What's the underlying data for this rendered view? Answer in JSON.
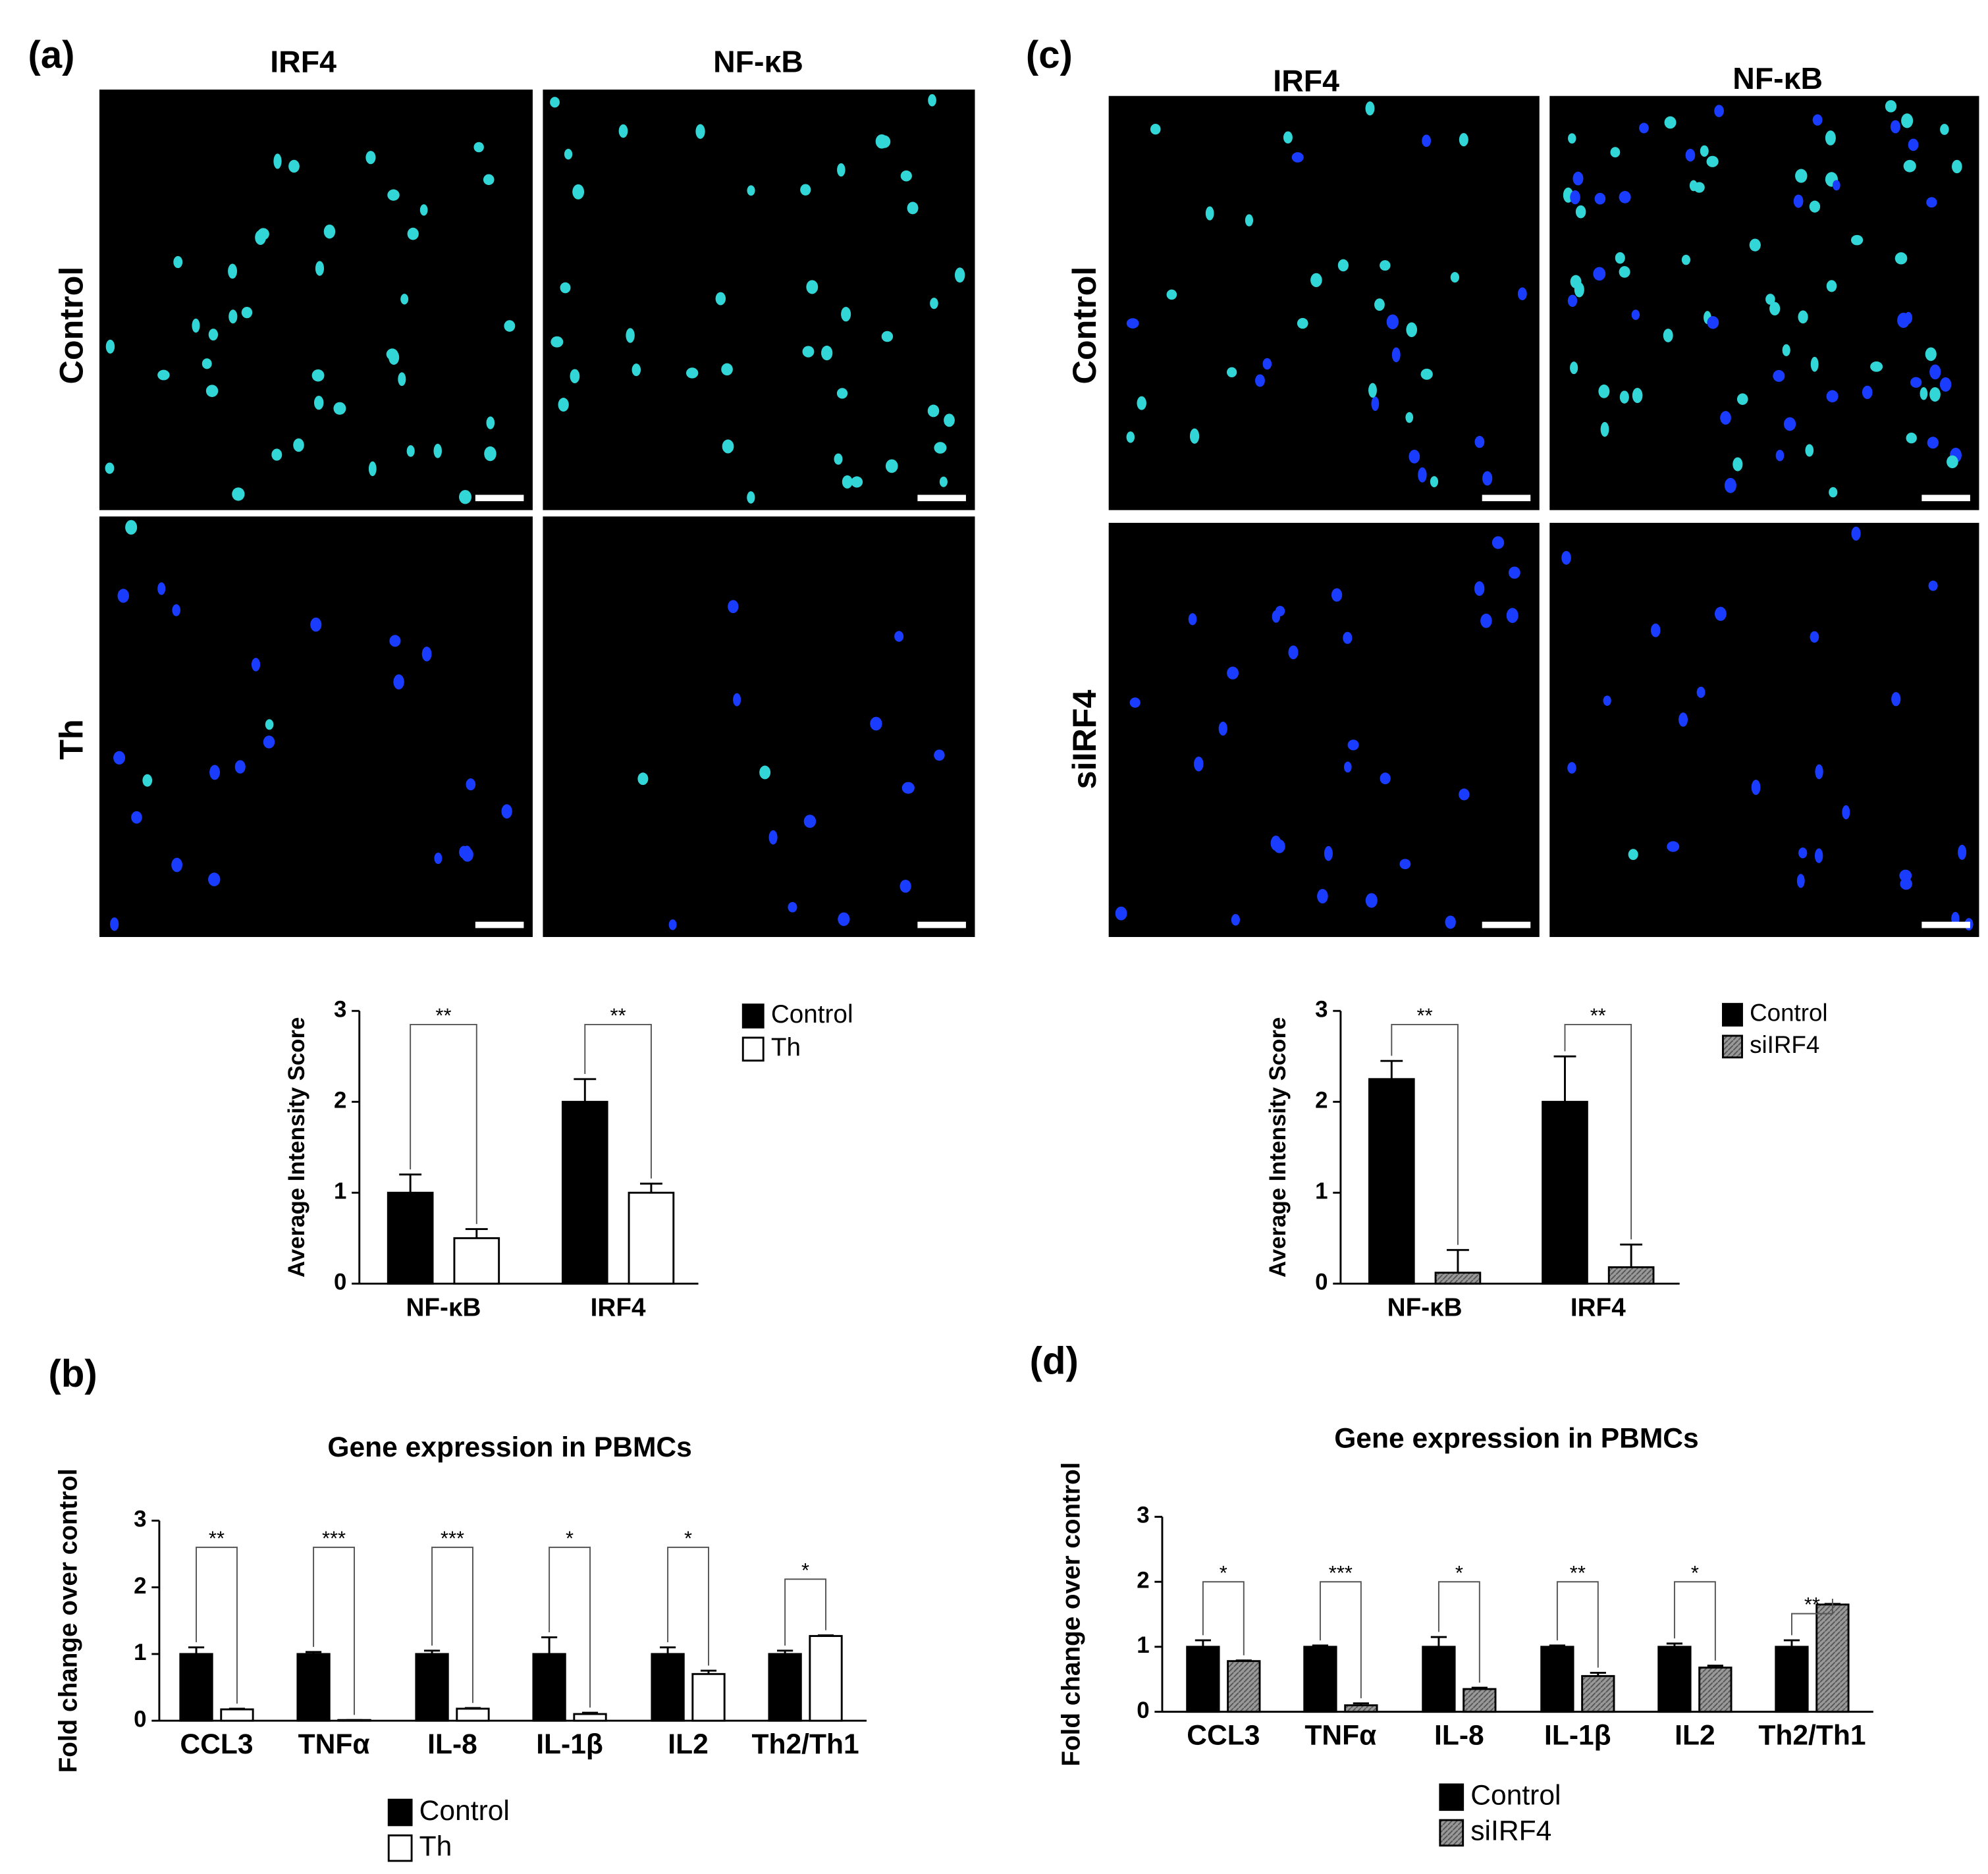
{
  "panels": {
    "a": {
      "label": "(a)",
      "columns": [
        "IRF4",
        "NF-κB"
      ],
      "rows": [
        "Control",
        "Th"
      ]
    },
    "c": {
      "label": "(c)",
      "columns": [
        "IRF4",
        "NF-κB"
      ],
      "rows": [
        "Control",
        "siIRF4"
      ]
    },
    "b": {
      "label": "(b)"
    },
    "d": {
      "label": "(d)"
    }
  },
  "chart_data": [
    {
      "type": "bar",
      "ylabel": "Average Intensity Score",
      "categories": [
        "NF-κB",
        "IRF4"
      ],
      "ylim": [
        0,
        3
      ],
      "yticks": [
        0,
        1,
        2,
        3
      ],
      "annotations": [
        "**",
        "**"
      ],
      "legend": "right",
      "series": [
        {
          "name": "Control",
          "color": "#000000",
          "values": [
            1,
            2
          ],
          "errors": [
            0.2,
            0.25
          ]
        },
        {
          "name": "Th",
          "color": "#ffffff",
          "values": [
            0.5,
            1
          ],
          "errors": [
            0.1,
            0.1
          ]
        }
      ]
    },
    {
      "type": "bar",
      "ylabel": "Average Intensity Score",
      "categories": [
        "NF-κB",
        "IRF4"
      ],
      "ylim": [
        0,
        3
      ],
      "yticks": [
        0,
        1,
        2,
        3
      ],
      "annotations": [
        "**",
        "**"
      ],
      "legend": "right",
      "series": [
        {
          "name": "Control",
          "color": "#000000",
          "values": [
            2.25,
            2
          ],
          "errors": [
            0.2,
            0.5
          ]
        },
        {
          "name": "siIRF4",
          "color": "#999999",
          "hatch": true,
          "values": [
            0.12,
            0.18
          ],
          "errors": [
            0.25,
            0.25
          ]
        }
      ]
    },
    {
      "type": "bar",
      "title": "Gene expression in PBMCs",
      "ylabel": "Fold change over control",
      "categories": [
        "CCL3",
        "TNFα",
        "IL-8",
        "IL-1β",
        "IL2",
        "Th2/Th1"
      ],
      "ylim": [
        0,
        3
      ],
      "yticks": [
        0,
        1,
        2,
        3
      ],
      "annotations": [
        "**",
        "***",
        "***",
        "*",
        "*",
        "*"
      ],
      "legend": "bottom",
      "series": [
        {
          "name": "Control",
          "color": "#000000",
          "values": [
            1,
            1,
            1,
            1,
            1,
            1
          ],
          "errors": [
            0.1,
            0.03,
            0.05,
            0.25,
            0.1,
            0.05
          ]
        },
        {
          "name": "Th",
          "color": "#ffffff",
          "values": [
            0.17,
            0.01,
            0.18,
            0.1,
            0.7,
            1.27
          ],
          "errors": [
            0.01,
            0,
            0.01,
            0.02,
            0.05,
            0.01
          ]
        }
      ]
    },
    {
      "type": "bar",
      "title": "Gene expression in PBMCs",
      "ylabel": "Fold change over control",
      "categories": [
        "CCL3",
        "TNFα",
        "IL-8",
        "IL-1β",
        "IL2",
        "Th2/Th1"
      ],
      "ylim": [
        0,
        3
      ],
      "yticks": [
        0,
        1,
        2,
        3
      ],
      "annotations": [
        "*",
        "***",
        "*",
        "**",
        "*",
        "**"
      ],
      "legend": "bottom",
      "series": [
        {
          "name": "Control",
          "color": "#000000",
          "values": [
            1,
            1,
            1,
            1,
            1,
            1
          ],
          "errors": [
            0.1,
            0.02,
            0.15,
            0.02,
            0.05,
            0.1
          ]
        },
        {
          "name": "siIRF4",
          "color": "#999999",
          "hatch": true,
          "values": [
            0.78,
            0.1,
            0.35,
            0.55,
            0.68,
            1.65
          ],
          "errors": [
            0.01,
            0.03,
            0.02,
            0.05,
            0.03,
            0.01
          ]
        }
      ]
    }
  ]
}
